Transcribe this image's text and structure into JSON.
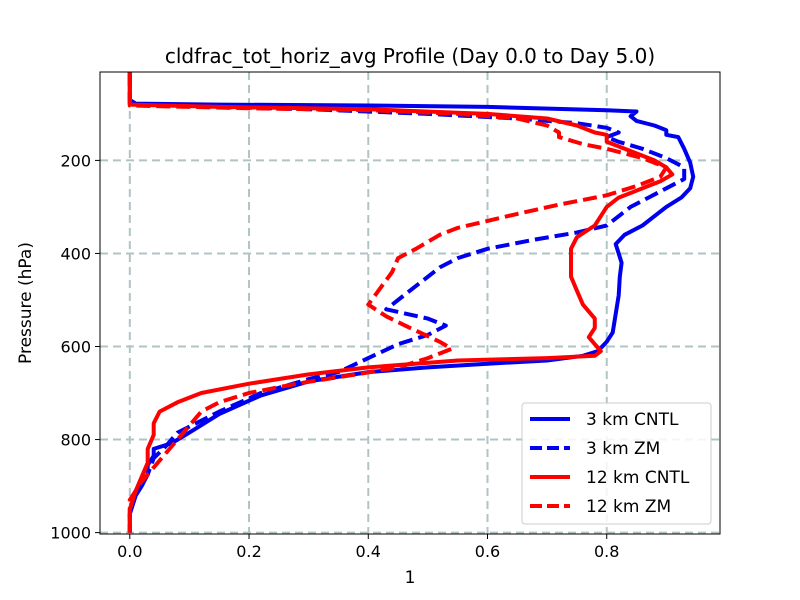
{
  "chart_data": {
    "type": "line",
    "title": "cldfrac_tot_horiz_avg Profile (Day 0.0 to Day 5.0)",
    "xlabel": "1",
    "ylabel": "Pressure (hPa)",
    "xlim": [
      -0.05,
      0.99
    ],
    "ylim": [
      1003,
      10
    ],
    "y_inverted": true,
    "xticks": [
      0.0,
      0.2,
      0.4,
      0.6,
      0.8
    ],
    "xtick_labels": [
      "0.0",
      "0.2",
      "0.4",
      "0.6",
      "0.8"
    ],
    "yticks": [
      200,
      400,
      600,
      800,
      1000
    ],
    "ytick_labels": [
      "200",
      "400",
      "600",
      "800",
      "1000"
    ],
    "grid": true,
    "legend_position": "lower-right",
    "colors": {
      "blue": "#0000ee",
      "red": "#ff0000",
      "grid": "#b0c4c4"
    },
    "series": [
      {
        "name": "3 km CNTL",
        "color": "#0000ee",
        "style": "solid",
        "points": [
          [
            0.0,
            10
          ],
          [
            0.0,
            70
          ],
          [
            0.01,
            78
          ],
          [
            0.15,
            80
          ],
          [
            0.4,
            82
          ],
          [
            0.6,
            85
          ],
          [
            0.8,
            92
          ],
          [
            0.85,
            95
          ],
          [
            0.84,
            105
          ],
          [
            0.85,
            115
          ],
          [
            0.88,
            125
          ],
          [
            0.9,
            135
          ],
          [
            0.9,
            145
          ],
          [
            0.92,
            150
          ],
          [
            0.93,
            175
          ],
          [
            0.94,
            205
          ],
          [
            0.945,
            235
          ],
          [
            0.94,
            260
          ],
          [
            0.925,
            280
          ],
          [
            0.9,
            300
          ],
          [
            0.88,
            320
          ],
          [
            0.86,
            340
          ],
          [
            0.83,
            360
          ],
          [
            0.815,
            380
          ],
          [
            0.82,
            400
          ],
          [
            0.825,
            420
          ],
          [
            0.822,
            450
          ],
          [
            0.82,
            490
          ],
          [
            0.815,
            530
          ],
          [
            0.81,
            570
          ],
          [
            0.8,
            590
          ],
          [
            0.785,
            610
          ],
          [
            0.76,
            620
          ],
          [
            0.7,
            630
          ],
          [
            0.6,
            637
          ],
          [
            0.5,
            645
          ],
          [
            0.4,
            655
          ],
          [
            0.3,
            675
          ],
          [
            0.22,
            705
          ],
          [
            0.15,
            745
          ],
          [
            0.1,
            785
          ],
          [
            0.07,
            808
          ],
          [
            0.04,
            820
          ],
          [
            0.04,
            835
          ],
          [
            0.03,
            855
          ],
          [
            0.03,
            875
          ],
          [
            0.02,
            900
          ],
          [
            0.01,
            920
          ],
          [
            0.0,
            960
          ],
          [
            0.0,
            1000
          ]
        ]
      },
      {
        "name": "3 km ZM",
        "color": "#0000ee",
        "style": "dashed",
        "points": [
          [
            0.0,
            10
          ],
          [
            0.0,
            78
          ],
          [
            0.12,
            84
          ],
          [
            0.3,
            90
          ],
          [
            0.5,
            100
          ],
          [
            0.65,
            110
          ],
          [
            0.75,
            120
          ],
          [
            0.8,
            130
          ],
          [
            0.82,
            140
          ],
          [
            0.8,
            150
          ],
          [
            0.82,
            160
          ],
          [
            0.86,
            175
          ],
          [
            0.9,
            195
          ],
          [
            0.93,
            215
          ],
          [
            0.93,
            240
          ],
          [
            0.9,
            260
          ],
          [
            0.87,
            280
          ],
          [
            0.84,
            300
          ],
          [
            0.82,
            320
          ],
          [
            0.8,
            340
          ],
          [
            0.75,
            355
          ],
          [
            0.68,
            370
          ],
          [
            0.6,
            390
          ],
          [
            0.55,
            410
          ],
          [
            0.52,
            430
          ],
          [
            0.49,
            460
          ],
          [
            0.46,
            490
          ],
          [
            0.43,
            520
          ],
          [
            0.5,
            540
          ],
          [
            0.53,
            555
          ],
          [
            0.5,
            575
          ],
          [
            0.45,
            595
          ],
          [
            0.4,
            625
          ],
          [
            0.35,
            655
          ],
          [
            0.3,
            670
          ],
          [
            0.22,
            700
          ],
          [
            0.15,
            740
          ],
          [
            0.08,
            785
          ],
          [
            0.06,
            815
          ],
          [
            0.04,
            840
          ],
          [
            0.03,
            875
          ],
          [
            0.01,
            910
          ],
          [
            0.0,
            960
          ],
          [
            0.0,
            1000
          ]
        ]
      },
      {
        "name": "12 km CNTL",
        "color": "#ff0000",
        "style": "solid",
        "points": [
          [
            0.0,
            10
          ],
          [
            0.0,
            80
          ],
          [
            0.15,
            85
          ],
          [
            0.4,
            90
          ],
          [
            0.6,
            100
          ],
          [
            0.7,
            110
          ],
          [
            0.75,
            125
          ],
          [
            0.78,
            140
          ],
          [
            0.8,
            145
          ],
          [
            0.8,
            160
          ],
          [
            0.85,
            185
          ],
          [
            0.88,
            200
          ],
          [
            0.9,
            215
          ],
          [
            0.91,
            230
          ],
          [
            0.89,
            245
          ],
          [
            0.86,
            260
          ],
          [
            0.82,
            280
          ],
          [
            0.8,
            300
          ],
          [
            0.79,
            320
          ],
          [
            0.78,
            340
          ],
          [
            0.75,
            365
          ],
          [
            0.74,
            390
          ],
          [
            0.74,
            420
          ],
          [
            0.74,
            450
          ],
          [
            0.75,
            480
          ],
          [
            0.76,
            510
          ],
          [
            0.78,
            540
          ],
          [
            0.78,
            560
          ],
          [
            0.77,
            580
          ],
          [
            0.78,
            595
          ],
          [
            0.79,
            610
          ],
          [
            0.78,
            620
          ],
          [
            0.7,
            625
          ],
          [
            0.55,
            630
          ],
          [
            0.4,
            645
          ],
          [
            0.3,
            660
          ],
          [
            0.2,
            680
          ],
          [
            0.12,
            700
          ],
          [
            0.08,
            720
          ],
          [
            0.05,
            740
          ],
          [
            0.04,
            765
          ],
          [
            0.04,
            790
          ],
          [
            0.03,
            820
          ],
          [
            0.03,
            850
          ],
          [
            0.02,
            880
          ],
          [
            0.01,
            910
          ],
          [
            0.0,
            950
          ],
          [
            0.0,
            1000
          ]
        ]
      },
      {
        "name": "12 km ZM",
        "color": "#ff0000",
        "style": "dashed",
        "points": [
          [
            0.0,
            10
          ],
          [
            0.0,
            82
          ],
          [
            0.2,
            88
          ],
          [
            0.4,
            92
          ],
          [
            0.55,
            100
          ],
          [
            0.65,
            110
          ],
          [
            0.7,
            125
          ],
          [
            0.72,
            140
          ],
          [
            0.72,
            150
          ],
          [
            0.76,
            165
          ],
          [
            0.8,
            175
          ],
          [
            0.86,
            195
          ],
          [
            0.9,
            215
          ],
          [
            0.89,
            235
          ],
          [
            0.85,
            255
          ],
          [
            0.8,
            275
          ],
          [
            0.72,
            295
          ],
          [
            0.65,
            315
          ],
          [
            0.6,
            330
          ],
          [
            0.55,
            345
          ],
          [
            0.52,
            360
          ],
          [
            0.5,
            375
          ],
          [
            0.48,
            390
          ],
          [
            0.45,
            410
          ],
          [
            0.44,
            440
          ],
          [
            0.42,
            475
          ],
          [
            0.4,
            510
          ],
          [
            0.43,
            535
          ],
          [
            0.47,
            560
          ],
          [
            0.52,
            590
          ],
          [
            0.54,
            605
          ],
          [
            0.5,
            625
          ],
          [
            0.45,
            645
          ],
          [
            0.38,
            660
          ],
          [
            0.28,
            680
          ],
          [
            0.2,
            700
          ],
          [
            0.15,
            720
          ],
          [
            0.12,
            740
          ],
          [
            0.1,
            770
          ],
          [
            0.08,
            800
          ],
          [
            0.06,
            830
          ],
          [
            0.04,
            860
          ],
          [
            0.02,
            890
          ],
          [
            0.0,
            930
          ],
          [
            0.0,
            1000
          ]
        ]
      }
    ]
  }
}
